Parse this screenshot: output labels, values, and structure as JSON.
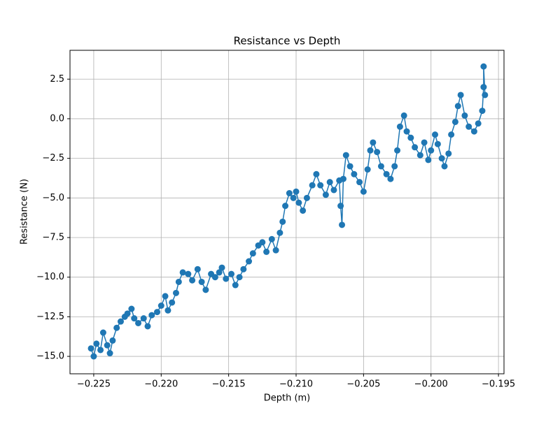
{
  "chart_data": {
    "type": "line",
    "title": "Resistance vs Depth",
    "x_label": "Depth (m)",
    "y_label": "Resistance (N)",
    "x": [
      -0.2252,
      -0.225,
      -0.2248,
      -0.2245,
      -0.2243,
      -0.224,
      -0.2238,
      -0.2236,
      -0.2233,
      -0.223,
      -0.2227,
      -0.2225,
      -0.2222,
      -0.222,
      -0.2217,
      -0.2213,
      -0.221,
      -0.2207,
      -0.2203,
      -0.22,
      -0.2197,
      -0.2195,
      -0.2192,
      -0.2189,
      -0.2187,
      -0.2184,
      -0.218,
      -0.2177,
      -0.2173,
      -0.217,
      -0.2167,
      -0.2163,
      -0.216,
      -0.2157,
      -0.2155,
      -0.2152,
      -0.2148,
      -0.2145,
      -0.2142,
      -0.2139,
      -0.2135,
      -0.2132,
      -0.2128,
      -0.2125,
      -0.2122,
      -0.2118,
      -0.2115,
      -0.2112,
      -0.211,
      -0.2108,
      -0.2105,
      -0.2102,
      -0.21,
      -0.2098,
      -0.2095,
      -0.2092,
      -0.2088,
      -0.2085,
      -0.2082,
      -0.2078,
      -0.2075,
      -0.2072,
      -0.2068,
      -0.2067,
      -0.2066,
      -0.2065,
      -0.2063,
      -0.206,
      -0.2057,
      -0.2053,
      -0.205,
      -0.2047,
      -0.2045,
      -0.2043,
      -0.204,
      -0.2037,
      -0.2033,
      -0.203,
      -0.2027,
      -0.2025,
      -0.2023,
      -0.202,
      -0.2018,
      -0.2015,
      -0.2012,
      -0.2008,
      -0.2005,
      -0.2002,
      -0.2,
      -0.1997,
      -0.1995,
      -0.1992,
      -0.199,
      -0.1987,
      -0.1985,
      -0.1982,
      -0.198,
      -0.1978,
      -0.1975,
      -0.1972,
      -0.1968,
      -0.1965,
      -0.1962,
      -0.1961,
      -0.1961,
      -0.196
    ],
    "series": [
      {
        "name": "Resistance",
        "color": "#1f77b4",
        "values": [
          -14.5,
          -15.0,
          -14.2,
          -14.6,
          -13.5,
          -14.3,
          -14.8,
          -14.0,
          -13.2,
          -12.8,
          -12.5,
          -12.3,
          -12.0,
          -12.6,
          -12.9,
          -12.6,
          -13.1,
          -12.4,
          -12.2,
          -11.8,
          -11.2,
          -12.1,
          -11.6,
          -11.0,
          -10.3,
          -9.7,
          -9.8,
          -10.2,
          -9.5,
          -10.3,
          -10.8,
          -9.8,
          -10.0,
          -9.7,
          -9.4,
          -10.1,
          -9.8,
          -10.5,
          -10.0,
          -9.5,
          -9.0,
          -8.5,
          -8.0,
          -7.8,
          -8.4,
          -7.6,
          -8.3,
          -7.2,
          -6.5,
          -5.5,
          -4.7,
          -5.0,
          -4.6,
          -5.3,
          -5.8,
          -5.0,
          -4.2,
          -3.5,
          -4.2,
          -4.8,
          -4.0,
          -4.5,
          -3.9,
          -5.5,
          -6.7,
          -3.8,
          -2.3,
          -3.0,
          -3.5,
          -4.0,
          -4.6,
          -3.2,
          -2.0,
          -1.5,
          -2.1,
          -3.0,
          -3.5,
          -3.8,
          -3.0,
          -2.0,
          -0.5,
          0.2,
          -0.8,
          -1.2,
          -1.8,
          -2.3,
          -1.5,
          -2.6,
          -2.0,
          -1.0,
          -1.6,
          -2.5,
          -3.0,
          -2.2,
          -1.0,
          -0.2,
          0.8,
          1.5,
          0.2,
          -0.5,
          -0.8,
          -0.3,
          0.5,
          2.0,
          3.3,
          1.5
        ]
      }
    ],
    "xlim": [
      -0.22676,
      -0.19459
    ],
    "ylim": [
      -16.1,
      4.32
    ],
    "xticks": [
      {
        "value": -0.225,
        "label": "−0.225"
      },
      {
        "value": -0.22,
        "label": "−0.220"
      },
      {
        "value": -0.215,
        "label": "−0.215"
      },
      {
        "value": -0.21,
        "label": "−0.210"
      },
      {
        "value": -0.205,
        "label": "−0.205"
      },
      {
        "value": -0.2,
        "label": "−0.200"
      },
      {
        "value": -0.195,
        "label": "−0.195"
      }
    ],
    "yticks": [
      {
        "value": -15,
        "label": "−15.0"
      },
      {
        "value": -12.5,
        "label": "−12.5"
      },
      {
        "value": -10,
        "label": "−10.0"
      },
      {
        "value": -7.5,
        "label": "−7.5"
      },
      {
        "value": -5,
        "label": "−5.0"
      },
      {
        "value": -2.5,
        "label": "−2.5"
      },
      {
        "value": 0,
        "label": "0.0"
      },
      {
        "value": 2.5,
        "label": "2.5"
      }
    ],
    "grid": true
  }
}
